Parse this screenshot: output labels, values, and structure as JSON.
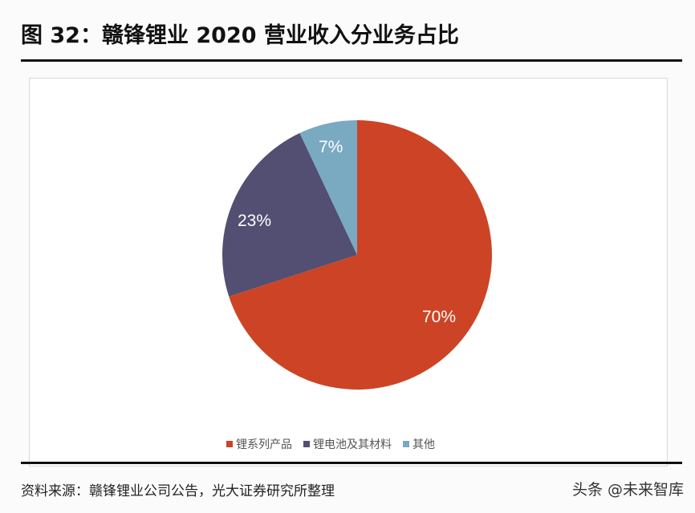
{
  "header": {
    "title": "图 32：赣锋锂业 2020 营业收入分业务占比"
  },
  "footer": {
    "source": "资料来源：赣锋锂业公司公告，光大证券研究所整理",
    "watermark": "头条 @未来智库"
  },
  "legend": [
    {
      "label": "锂系列产品",
      "color": "#cc4425"
    },
    {
      "label": "锂电池及其材料",
      "color": "#524f72"
    },
    {
      "label": "其他",
      "color": "#7aa9c2"
    }
  ],
  "labels": {
    "s0": "70%",
    "s1": "23%",
    "s2": "7%"
  },
  "chart_data": {
    "type": "pie",
    "title": "图 32：赣锋锂业 2020 营业收入分业务占比",
    "categories": [
      "锂系列产品",
      "锂电池及其材料",
      "其他"
    ],
    "values": [
      70,
      23,
      7
    ],
    "unit": "%",
    "colors": [
      "#cc4425",
      "#524f72",
      "#7aa9c2"
    ],
    "start_angle": "12 o'clock, clockwise",
    "legend_position": "bottom"
  }
}
